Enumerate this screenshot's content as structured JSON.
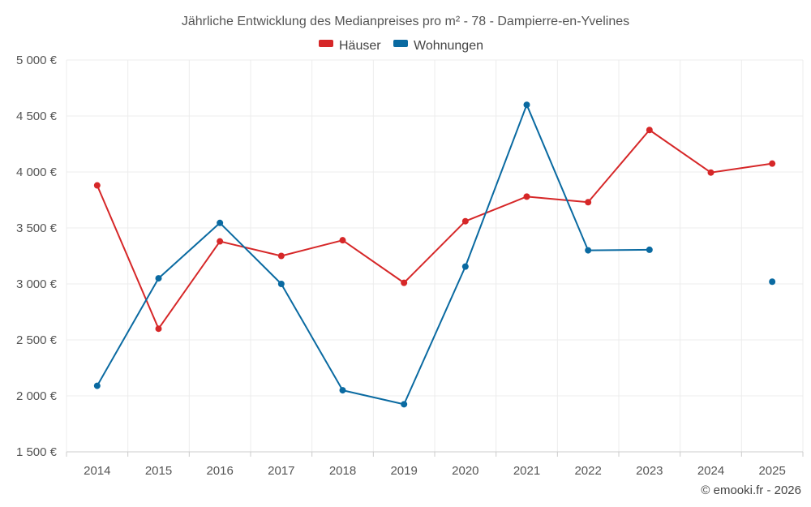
{
  "chart_data": {
    "type": "line",
    "title": "Jährliche Entwicklung des Medianpreises pro m² - 78 - Dampierre-en-Yvelines",
    "categories": [
      "2014",
      "2015",
      "2016",
      "2017",
      "2018",
      "2019",
      "2020",
      "2021",
      "2022",
      "2023",
      "2024",
      "2025"
    ],
    "ylim": [
      1500,
      5000
    ],
    "yticks": [
      1500,
      2000,
      2500,
      3000,
      3500,
      4000,
      4500,
      5000
    ],
    "ytick_labels": [
      "1 500 €",
      "2 000 €",
      "2 500 €",
      "3 000 €",
      "3 500 €",
      "4 000 €",
      "4 500 €",
      "5 000 €"
    ],
    "grid": true,
    "legend_position": "top-center",
    "series": [
      {
        "name": "Häuser",
        "color": "#d62728",
        "values": [
          3880,
          2600,
          3380,
          3250,
          3390,
          3010,
          3560,
          3780,
          3730,
          4375,
          3995,
          4075
        ]
      },
      {
        "name": "Wohnungen",
        "color": "#0a6aa1",
        "values": [
          2090,
          3050,
          3545,
          3000,
          2050,
          1925,
          3155,
          4600,
          3300,
          3305,
          null,
          3020
        ]
      }
    ]
  },
  "credit": "© emooki.fr - 2026"
}
